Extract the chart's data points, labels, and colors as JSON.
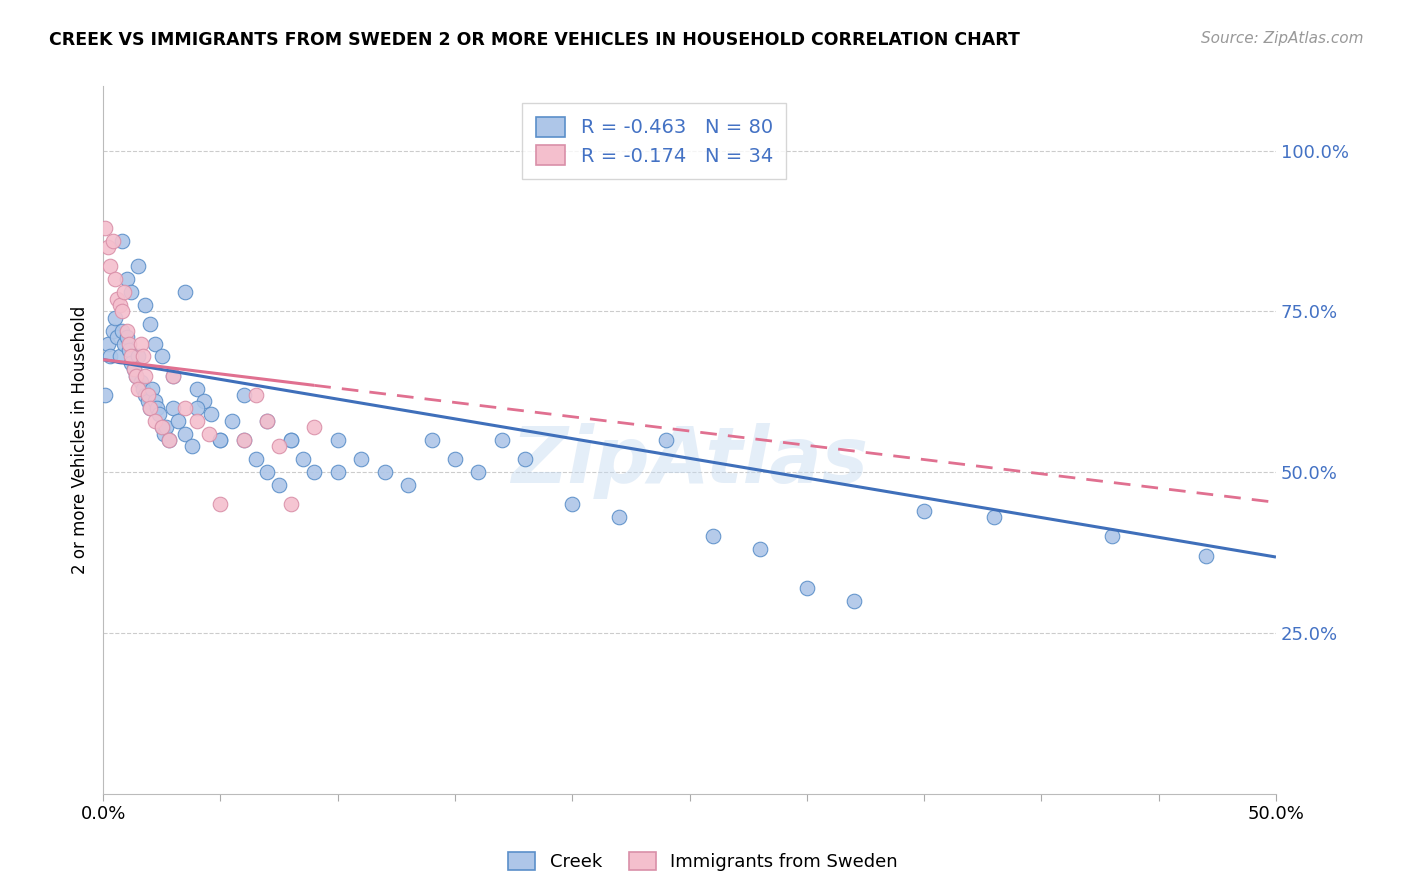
{
  "title": "CREEK VS IMMIGRANTS FROM SWEDEN 2 OR MORE VEHICLES IN HOUSEHOLD CORRELATION CHART",
  "source": "Source: ZipAtlas.com",
  "ylabel": "2 or more Vehicles in Household",
  "xlim": [
    0.0,
    0.5
  ],
  "ylim": [
    0.0,
    1.1
  ],
  "yticks_right": [
    0.25,
    0.5,
    0.75,
    1.0
  ],
  "ytick_right_labels": [
    "25.0%",
    "50.0%",
    "75.0%",
    "100.0%"
  ],
  "legend_blue_label": "R = -0.463   N = 80",
  "legend_pink_label": "R = -0.174   N = 34",
  "blue_color": "#aec6e8",
  "blue_edge_color": "#5b8fc9",
  "pink_color": "#f4bfcd",
  "pink_edge_color": "#d98fa8",
  "blue_line_color": "#3f6fba",
  "pink_line_color": "#e07090",
  "text_color": "#4472c4",
  "watermark": "ZipAtlas",
  "creek_label": "Creek",
  "sweden_label": "Immigrants from Sweden",
  "blue_line_x0": 0.0,
  "blue_line_y0": 0.675,
  "blue_line_x1": 0.5,
  "blue_line_y1": 0.368,
  "pink_line_x0": 0.0,
  "pink_line_y0": 0.675,
  "pink_line_x1": 0.5,
  "pink_line_y1": 0.453,
  "blue_scatter_x": [
    0.001,
    0.002,
    0.003,
    0.004,
    0.005,
    0.006,
    0.007,
    0.008,
    0.009,
    0.01,
    0.011,
    0.012,
    0.013,
    0.014,
    0.015,
    0.016,
    0.017,
    0.018,
    0.019,
    0.02,
    0.021,
    0.022,
    0.023,
    0.024,
    0.025,
    0.026,
    0.027,
    0.028,
    0.03,
    0.032,
    0.035,
    0.038,
    0.04,
    0.043,
    0.046,
    0.05,
    0.055,
    0.06,
    0.065,
    0.07,
    0.075,
    0.08,
    0.085,
    0.09,
    0.1,
    0.11,
    0.12,
    0.13,
    0.14,
    0.15,
    0.16,
    0.17,
    0.18,
    0.2,
    0.22,
    0.24,
    0.26,
    0.28,
    0.3,
    0.32,
    0.008,
    0.01,
    0.012,
    0.015,
    0.018,
    0.02,
    0.022,
    0.025,
    0.03,
    0.035,
    0.04,
    0.05,
    0.06,
    0.07,
    0.08,
    0.1,
    0.35,
    0.38,
    0.43,
    0.47
  ],
  "blue_scatter_y": [
    0.62,
    0.7,
    0.68,
    0.72,
    0.74,
    0.71,
    0.68,
    0.72,
    0.7,
    0.71,
    0.69,
    0.67,
    0.66,
    0.65,
    0.68,
    0.64,
    0.63,
    0.62,
    0.61,
    0.6,
    0.63,
    0.61,
    0.6,
    0.59,
    0.57,
    0.56,
    0.57,
    0.55,
    0.6,
    0.58,
    0.56,
    0.54,
    0.63,
    0.61,
    0.59,
    0.55,
    0.58,
    0.55,
    0.52,
    0.5,
    0.48,
    0.55,
    0.52,
    0.5,
    0.55,
    0.52,
    0.5,
    0.48,
    0.55,
    0.52,
    0.5,
    0.55,
    0.52,
    0.45,
    0.43,
    0.55,
    0.4,
    0.38,
    0.32,
    0.3,
    0.86,
    0.8,
    0.78,
    0.82,
    0.76,
    0.73,
    0.7,
    0.68,
    0.65,
    0.78,
    0.6,
    0.55,
    0.62,
    0.58,
    0.55,
    0.5,
    0.44,
    0.43,
    0.4,
    0.37
  ],
  "pink_scatter_x": [
    0.001,
    0.002,
    0.003,
    0.004,
    0.005,
    0.006,
    0.007,
    0.008,
    0.009,
    0.01,
    0.011,
    0.012,
    0.013,
    0.014,
    0.015,
    0.016,
    0.017,
    0.018,
    0.019,
    0.02,
    0.022,
    0.025,
    0.028,
    0.03,
    0.035,
    0.04,
    0.045,
    0.05,
    0.06,
    0.065,
    0.07,
    0.075,
    0.08,
    0.09
  ],
  "pink_scatter_y": [
    0.88,
    0.85,
    0.82,
    0.86,
    0.8,
    0.77,
    0.76,
    0.75,
    0.78,
    0.72,
    0.7,
    0.68,
    0.66,
    0.65,
    0.63,
    0.7,
    0.68,
    0.65,
    0.62,
    0.6,
    0.58,
    0.57,
    0.55,
    0.65,
    0.6,
    0.58,
    0.56,
    0.45,
    0.55,
    0.62,
    0.58,
    0.54,
    0.45,
    0.57
  ]
}
